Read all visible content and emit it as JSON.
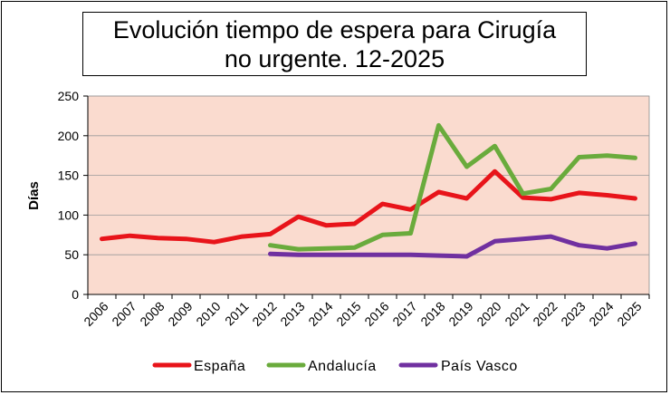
{
  "chart_data": {
    "type": "line",
    "title": "Evolución tiempo de espera para Cirugía no urgente. 12-2025",
    "ylabel": "Días",
    "xlabel": "",
    "ylim": [
      0,
      250
    ],
    "yticks": [
      0,
      50,
      100,
      150,
      200,
      250
    ],
    "categories": [
      "2006",
      "2007",
      "2008",
      "2009",
      "2010",
      "2011",
      "2012",
      "2013",
      "2014",
      "2015",
      "2016",
      "2017",
      "2018",
      "2019",
      "2020",
      "2021",
      "2022",
      "2023",
      "2024",
      "2025"
    ],
    "plot_background": "#fadbcf",
    "grid": true,
    "legend_position": "bottom",
    "series": [
      {
        "name": "España",
        "color": "#e8141a",
        "values": [
          70,
          74,
          71,
          70,
          66,
          73,
          76,
          98,
          87,
          89,
          114,
          107,
          129,
          121,
          155,
          122,
          120,
          128,
          125,
          121
        ]
      },
      {
        "name": "Andalucía",
        "color": "#6aab3c",
        "values": [
          null,
          null,
          null,
          null,
          null,
          null,
          62,
          57,
          58,
          59,
          75,
          77,
          213,
          161,
          187,
          127,
          133,
          173,
          175,
          172
        ]
      },
      {
        "name": "País Vasco",
        "color": "#7030a0",
        "values": [
          null,
          null,
          null,
          null,
          null,
          null,
          51,
          50,
          50,
          50,
          50,
          50,
          49,
          48,
          67,
          70,
          73,
          62,
          58,
          64
        ]
      }
    ]
  }
}
